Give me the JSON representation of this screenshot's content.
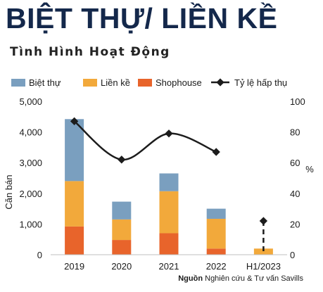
{
  "page_title": "BIỆT THỰ/ LIỀN KỀ",
  "source": {
    "label": "Nguồn",
    "text": "Nghiên cứu & Tư vấn Savills"
  },
  "chart_data": {
    "type": "bar",
    "title": "Tình Hình Hoạt Động",
    "stacked": true,
    "categories": [
      "2019",
      "2020",
      "2021",
      "2022",
      "H1/2023"
    ],
    "series": [
      {
        "name": "Shophouse",
        "color": "#e8642b",
        "values": [
          920,
          480,
          700,
          200,
          0
        ]
      },
      {
        "name": "Liền kề",
        "color": "#f2a93b",
        "values": [
          1480,
          670,
          1370,
          970,
          200
        ]
      },
      {
        "name": "Biệt thự",
        "color": "#7a9fbf",
        "values": [
          2020,
          580,
          580,
          330,
          0
        ]
      }
    ],
    "line_series": {
      "name": "Tỷ lệ hấp thụ",
      "color": "#1c1c1c",
      "axis": "right",
      "values": [
        87,
        62,
        79,
        67,
        null
      ],
      "dashed_point": {
        "category": "H1/2023",
        "value": 22
      }
    },
    "legend_order": [
      "Biệt thự",
      "Liền kề",
      "Shophouse",
      "Tỷ lệ hấp thụ"
    ],
    "legend_position": "top",
    "ylabel": "Căn bán",
    "y2label": "%",
    "ylim": [
      0,
      5000
    ],
    "y2lim": [
      0,
      100
    ],
    "yticks": [
      "0",
      "1,000",
      "2,000",
      "3,000",
      "4,000",
      "5,000"
    ],
    "y2ticks": [
      "0",
      "20",
      "40",
      "60",
      "80",
      "100"
    ],
    "grid": false
  }
}
